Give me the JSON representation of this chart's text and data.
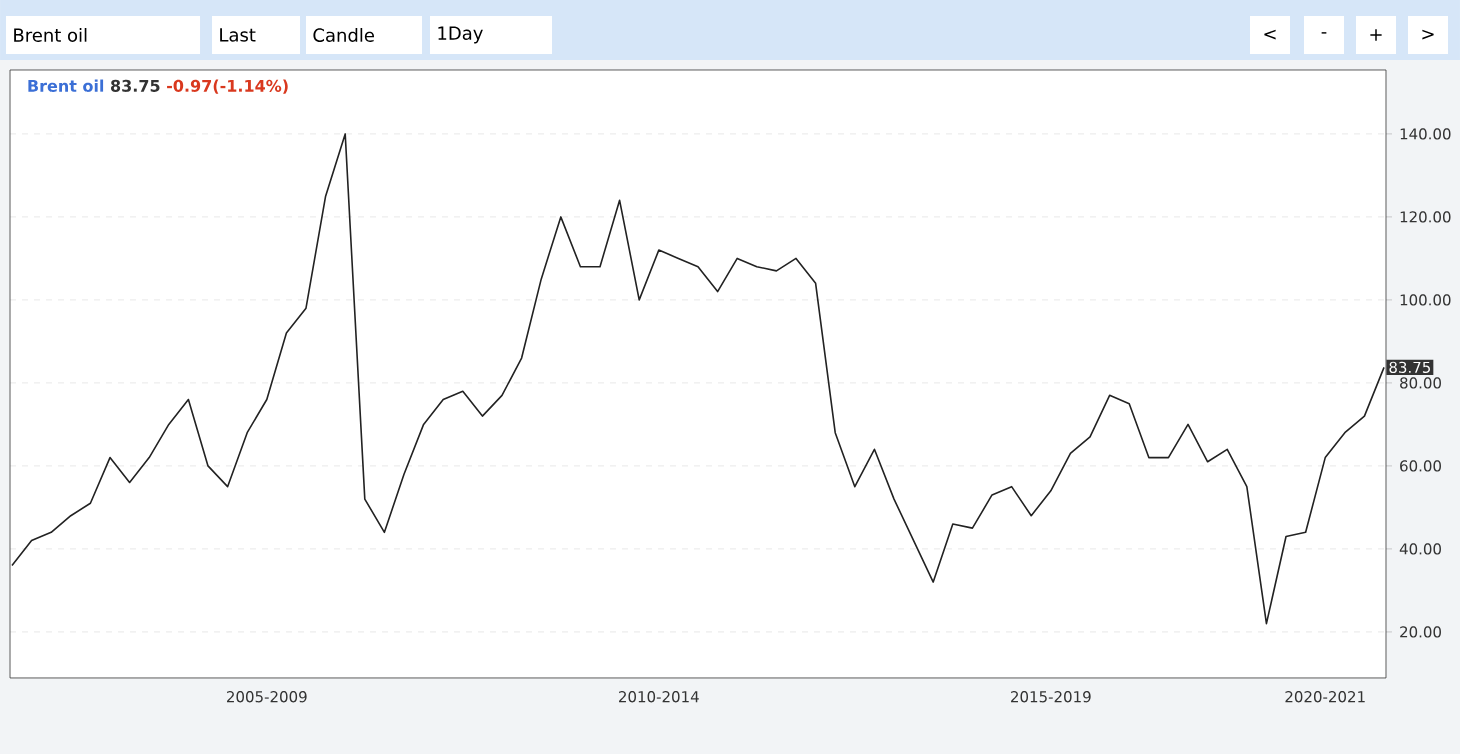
{
  "chart_data": {
    "type": "line",
    "title": "Brent oil",
    "color": "#222222",
    "marker": "none",
    "line_style": "solid",
    "grid": "y",
    "categories": [
      null,
      null,
      null,
      null,
      null,
      null,
      null,
      null,
      null,
      null,
      null,
      null,
      null,
      "2005-2009",
      null,
      null,
      null,
      null,
      null,
      null,
      null,
      null,
      null,
      null,
      null,
      null,
      null,
      null,
      null,
      null,
      null,
      null,
      null,
      "2010-2014",
      null,
      null,
      null,
      null,
      null,
      null,
      null,
      null,
      null,
      null,
      null,
      null,
      null,
      null,
      null,
      null,
      null,
      null,
      null,
      "2015-2019",
      null,
      null,
      null,
      null,
      null,
      null,
      null,
      null,
      null,
      null,
      null,
      null,
      null,
      "2020-2021",
      null,
      null,
      null
    ],
    "values": [
      36,
      42,
      44,
      48,
      51,
      62,
      56,
      62,
      70,
      76,
      60,
      55,
      68,
      76,
      92,
      98,
      125,
      140,
      52,
      44,
      58,
      70,
      76,
      78,
      72,
      77,
      86,
      105,
      120,
      108,
      108,
      124,
      100,
      112,
      110,
      108,
      102,
      110,
      108,
      107,
      110,
      104,
      68,
      55,
      64,
      52,
      42,
      32,
      46,
      45,
      53,
      55,
      48,
      54,
      63,
      67,
      77,
      75,
      62,
      62,
      70,
      61,
      64,
      55,
      22,
      43,
      44,
      62,
      68,
      72,
      83.75
    ],
    "ylim": [
      8.9,
      155.4
    ],
    "yticks": [
      {
        "value": 20,
        "label": "20.00"
      },
      {
        "value": 40,
        "label": "40.00"
      },
      {
        "value": 60,
        "label": "60.00"
      },
      {
        "value": 80,
        "label": "80.00"
      },
      {
        "value": 100,
        "label": "100.00"
      },
      {
        "value": 120,
        "label": "120.00"
      },
      {
        "value": 140,
        "label": "140.00"
      }
    ],
    "annotations": [
      "83.75",
      "-0.97(-1.14%)",
      {
        "text": "83.75",
        "y": 83.75
      },
      "Brent oil",
      "Last",
      "Candle",
      "1Day",
      "<",
      "-",
      "+",
      ">"
    ]
  }
}
